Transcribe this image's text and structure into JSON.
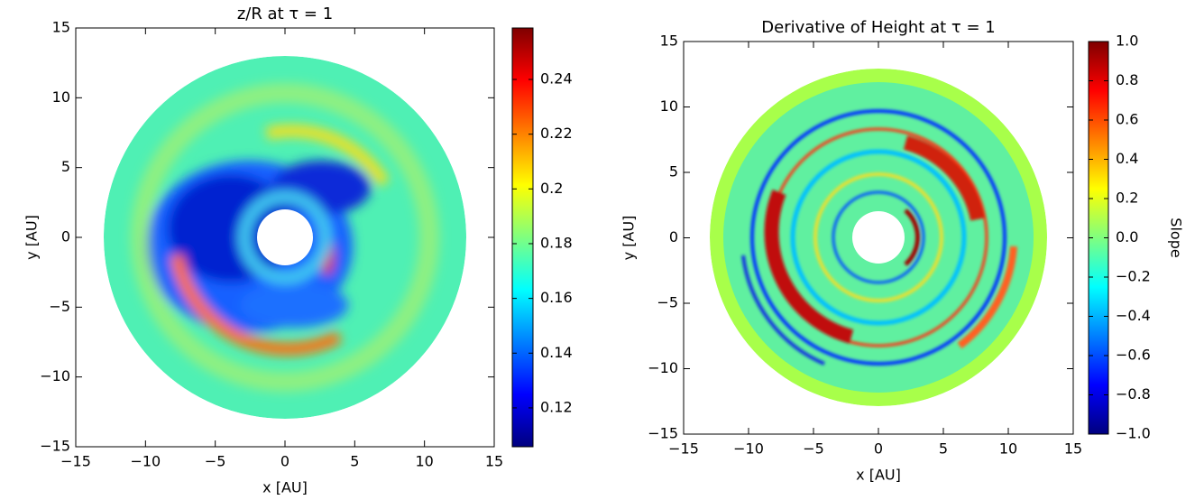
{
  "chart_data": [
    {
      "type": "heatmap",
      "title": "z/R at τ = 1",
      "xlabel": "x [AU]",
      "ylabel": "y [AU]",
      "xlim": [
        -15,
        15
      ],
      "ylim": [
        -15,
        15
      ],
      "xticks": [
        {
          "value": -15,
          "label": "−15"
        },
        {
          "value": -10,
          "label": "−10"
        },
        {
          "value": -5,
          "label": "−5"
        },
        0,
        5,
        10,
        15
      ],
      "yticks": [
        {
          "value": -15,
          "label": "−15"
        },
        {
          "value": -10,
          "label": "−10"
        },
        {
          "value": -5,
          "label": "−5"
        },
        0,
        5,
        10,
        15
      ],
      "colorbar": {
        "colormap": "jet",
        "lim": [
          0.1058,
          0.2588
        ],
        "ticks": [
          0.12,
          0.14,
          0.16,
          0.18,
          0.2,
          0.22,
          0.24
        ]
      }
    },
    {
      "type": "heatmap",
      "title": "Derivative of Height at τ = 1",
      "xlabel": "x [AU]",
      "ylabel": "y [AU]",
      "xlim": [
        -15,
        15
      ],
      "ylim": [
        -15,
        15
      ],
      "xticks": [
        {
          "value": -15,
          "label": "−15"
        },
        {
          "value": -10,
          "label": "−10"
        },
        {
          "value": -5,
          "label": "−5"
        },
        0,
        5,
        10,
        15
      ],
      "yticks": [
        {
          "value": -15,
          "label": "−15"
        },
        {
          "value": -10,
          "label": "−10"
        },
        {
          "value": -5,
          "label": "−5"
        },
        0,
        5,
        10,
        15
      ],
      "colorbar": {
        "colormap": "jet",
        "lim": [
          -1,
          1
        ],
        "label": "Slope",
        "ticks": [
          {
            "value": -1,
            "label": "−1.0"
          },
          {
            "value": -0.8,
            "label": "−0.8"
          },
          {
            "value": -0.6,
            "label": "−0.6"
          },
          {
            "value": -0.4,
            "label": "−0.4"
          },
          {
            "value": -0.2,
            "label": "−0.2"
          },
          {
            "value": 0,
            "label": "0.0"
          },
          {
            "value": 0.2,
            "label": "0.2"
          },
          {
            "value": 0.4,
            "label": "0.4"
          },
          {
            "value": 0.6,
            "label": "0.6"
          },
          {
            "value": 0.8,
            "label": "0.8"
          },
          {
            "value": 1,
            "label": "1.0"
          }
        ]
      }
    }
  ]
}
